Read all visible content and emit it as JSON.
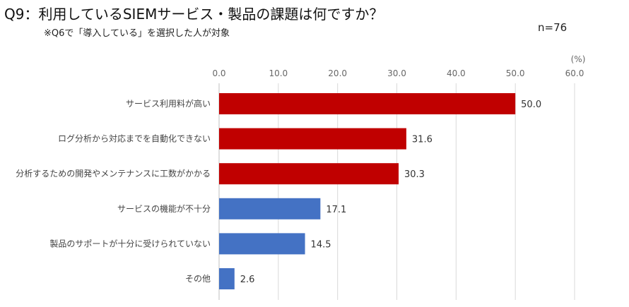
{
  "chart_data": {
    "type": "bar",
    "orientation": "horizontal",
    "title": "Q9：利用しているSIEMサービス・製品の課題は何ですか？",
    "subtitle": "※Q6で「導入している」を選択した人が対象",
    "n_label": "n=76",
    "unit_label": "(%)",
    "xlim": [
      0,
      60
    ],
    "ticks": [
      "0.0",
      "10.0",
      "20.0",
      "30.0",
      "40.0",
      "50.0",
      "60.0"
    ],
    "tick_values": [
      0,
      10,
      20,
      30,
      40,
      50,
      60
    ],
    "grid": true,
    "categories": [
      "サービス利用料が高い",
      "ログ分析から対応までを自動化できない",
      "分析するための開発やメンテナンスに工数がかかる",
      "サービスの機能が不十分",
      "製品のサポートが十分に受けられていない",
      "その他"
    ],
    "values": [
      50.0,
      31.6,
      30.3,
      17.1,
      14.5,
      2.6
    ],
    "value_labels": [
      "50.0",
      "31.6",
      "30.3",
      "17.1",
      "14.5",
      "2.6"
    ],
    "bar_colors": [
      "#c00000",
      "#c00000",
      "#c00000",
      "#4472c4",
      "#4472c4",
      "#4472c4"
    ]
  }
}
